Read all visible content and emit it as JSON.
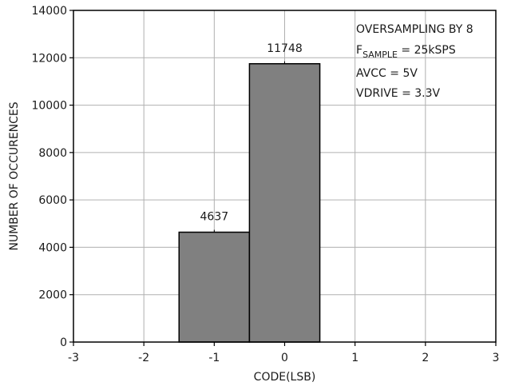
{
  "chart_data": {
    "type": "bar",
    "title": "",
    "xlabel": "CODE(LSB)",
    "ylabel": "NUMBER OF OCCURENCES",
    "xlim": [
      -3,
      3
    ],
    "ylim": [
      0,
      14000
    ],
    "xticks": [
      -3,
      -2,
      -1,
      0,
      1,
      2,
      3
    ],
    "yticks": [
      0,
      2000,
      4000,
      6000,
      8000,
      10000,
      12000,
      14000
    ],
    "grid": true,
    "bar_width": 1,
    "bar_color": "#808080",
    "bars": [
      {
        "x": -1,
        "value": 4637,
        "label": "4637"
      },
      {
        "x": 0,
        "value": 11748,
        "label": "11748"
      }
    ],
    "annotation": {
      "placement": "top-right",
      "line1": "OVERSAMPLING BY 8",
      "line2_main": "F",
      "line2_sub": "SAMPLE",
      "line2_rest": " = 25kSPS",
      "line3": "AVCC = 5V",
      "line4": "VDRIVE = 3.3V"
    }
  }
}
